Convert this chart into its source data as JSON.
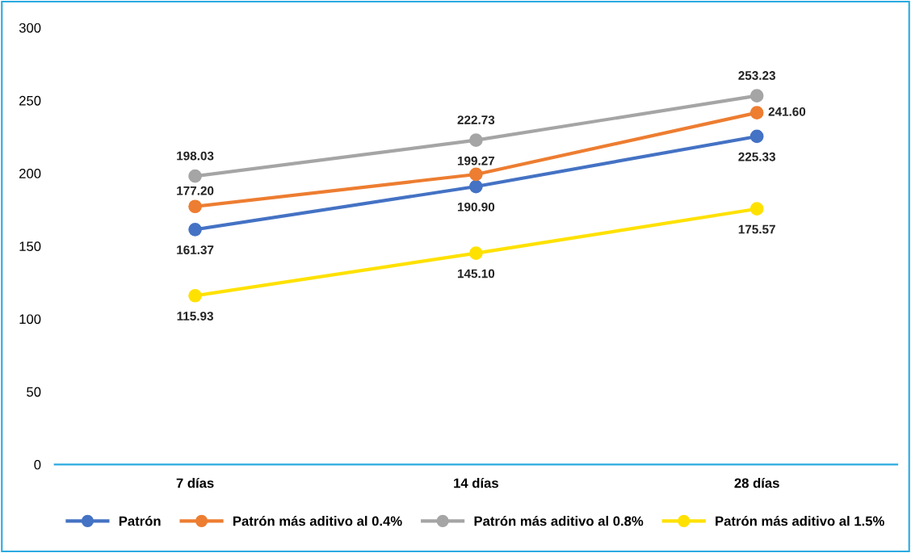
{
  "chart_data": {
    "type": "line",
    "categories": [
      "7 días",
      "14 días",
      "28 días"
    ],
    "series": [
      {
        "name": "Patrón",
        "color": "#4472c4",
        "values": [
          161.37,
          190.9,
          225.33
        ],
        "value_labels": [
          "161.37",
          "190.90",
          "225.33"
        ]
      },
      {
        "name": "Patrón más aditivo al 0.4%",
        "color": "#ed7d31",
        "values": [
          177.2,
          199.27,
          241.6
        ],
        "value_labels": [
          "177.20",
          "199.27",
          "241.60"
        ]
      },
      {
        "name": "Patrón más aditivo al 0.8%",
        "color": "#a5a5a5",
        "values": [
          198.03,
          222.73,
          253.23
        ],
        "value_labels": [
          "198.03",
          "222.73",
          "253.23"
        ]
      },
      {
        "name": "Patrón más aditivo al 1.5%",
        "color": "#ffe100",
        "values": [
          115.93,
          145.1,
          175.57
        ],
        "value_labels": [
          "115.93",
          "145.10",
          "175.57"
        ]
      }
    ],
    "ylim": [
      0,
      300
    ],
    "yticks": [
      0,
      50,
      100,
      150,
      200,
      250,
      300
    ],
    "grid": false,
    "legend": "bottom",
    "marker": "circle",
    "line_style": "solid"
  }
}
